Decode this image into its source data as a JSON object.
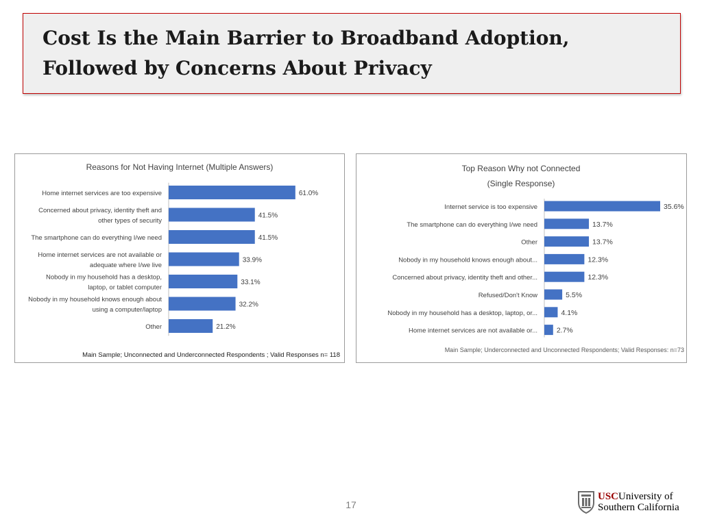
{
  "slide": {
    "title": "Cost Is the Main Barrier to Broadband Adoption, Followed by Concerns About Privacy",
    "page_number": "17"
  },
  "logo": {
    "usc": "USC",
    "line1": "University of",
    "line2": "Southern California",
    "brand_color": "#990000"
  },
  "chart_data": [
    {
      "type": "bar",
      "orientation": "horizontal",
      "title": [
        "Reasons for Not Having Internet (Multiple Answers)"
      ],
      "categories": [
        [
          "Home internet services are too expensive"
        ],
        [
          "Concerned about privacy, identity theft and",
          "other types of security"
        ],
        [
          "The smartphone can do everything I/we need"
        ],
        [
          "Home internet services are not available or",
          "adequate where I/we live"
        ],
        [
          "Nobody in my household has a desktop,",
          "laptop, or tablet computer"
        ],
        [
          "Nobody in my household knows enough about",
          "using a computer/laptop"
        ],
        [
          "Other"
        ]
      ],
      "values": [
        61.0,
        41.5,
        41.5,
        33.9,
        33.1,
        32.2,
        21.2
      ],
      "value_labels": [
        "61.0%",
        "41.5%",
        "41.5%",
        "33.9%",
        "33.1%",
        "32.2%",
        "21.2%"
      ],
      "xlim": [
        0,
        100
      ],
      "bar_color": "#4472c4",
      "footnote": "Main Sample; Unconnected and Underconnected Respondents ; Valid Responses n= 118",
      "grid": false
    },
    {
      "type": "bar",
      "orientation": "horizontal",
      "title": [
        "Top Reason Why not Connected",
        "(Single Response)"
      ],
      "categories": [
        [
          "Internet service is too expensive"
        ],
        [
          "The smartphone can do everything I/we need"
        ],
        [
          "Other"
        ],
        [
          "Nobody in my household knows enough about..."
        ],
        [
          "Concerned about privacy, identity theft and other..."
        ],
        [
          "Refused/Don't Know"
        ],
        [
          "Nobody in my household has a desktop, laptop, or..."
        ],
        [
          "Home internet services are not available or..."
        ]
      ],
      "values": [
        35.6,
        13.7,
        13.7,
        12.3,
        12.3,
        5.5,
        4.1,
        2.7
      ],
      "value_labels": [
        "35.6%",
        "13.7%",
        "13.7%",
        "12.3%",
        "12.3%",
        "5.5%",
        "4.1%",
        "2.7%"
      ],
      "xlim": [
        0,
        35.6
      ],
      "bar_color": "#4472c4",
      "footnote": "Main Sample; Underconnected and Unconnected Respondents; Valid Responses: n=73",
      "grid": false
    }
  ]
}
